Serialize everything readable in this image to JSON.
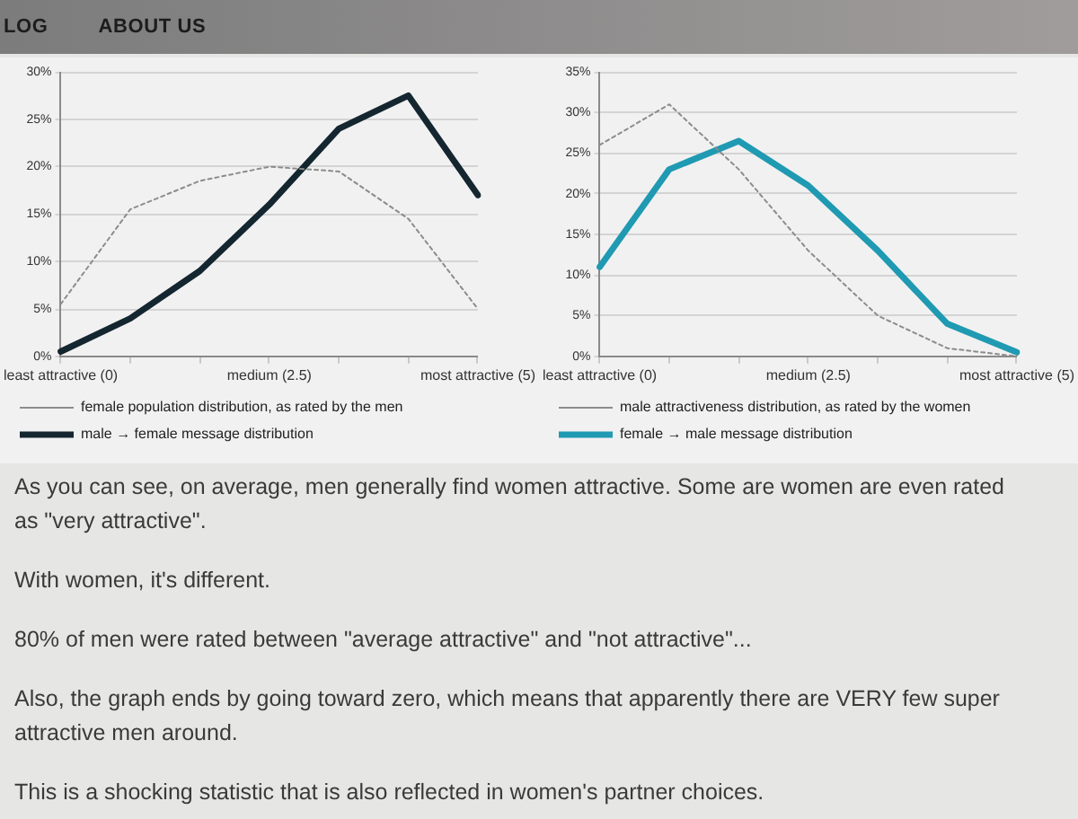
{
  "chart_data": [
    {
      "type": "line",
      "categories": [
        "least attractive (0)",
        null,
        null,
        "medium (2.5)",
        null,
        null,
        "most attractive (5)"
      ],
      "series": [
        {
          "name": "female population distribution, as rated by the men",
          "color": "#8c8c8c",
          "line_style": "dotted",
          "values": [
            5.5,
            15.5,
            18.5,
            20,
            19.5,
            14.5,
            5
          ]
        },
        {
          "name": "male → female message distribution",
          "color": "#14262f",
          "line_style": "solid",
          "values": [
            0.5,
            4,
            9,
            16,
            24,
            27.5,
            17
          ]
        }
      ],
      "ylim": [
        0,
        30
      ],
      "yticks": [
        {
          "value": 0,
          "label": "0%"
        },
        {
          "value": 5,
          "label": "5%"
        },
        {
          "value": 10,
          "label": "10%"
        },
        {
          "value": 15,
          "label": "15%"
        },
        {
          "value": 20,
          "label": "20%"
        },
        {
          "value": 25,
          "label": "25%"
        },
        {
          "value": 30,
          "label": "30%"
        }
      ],
      "grid": "y",
      "legend": "bottom",
      "marker": "none",
      "annotations": [
        "LOG",
        "ABOUT US"
      ]
    },
    {
      "type": "line",
      "categories": [
        "least attractive (0)",
        null,
        null,
        "medium (2.5)",
        null,
        null,
        "most attractive (5)"
      ],
      "series": [
        {
          "name": "male attractiveness distribution, as rated by the women",
          "color": "#8c8c8c",
          "line_style": "dotted",
          "values": [
            26,
            31,
            23,
            13,
            5,
            1,
            0
          ]
        },
        {
          "name": "female → male message distribution",
          "color": "#1f9ab2",
          "line_style": "solid",
          "values": [
            11,
            23,
            26.5,
            21,
            13,
            4,
            0.5
          ]
        }
      ],
      "ylim": [
        0,
        35
      ],
      "yticks": [
        {
          "value": 0,
          "label": "0%"
        },
        {
          "value": 5,
          "label": "5%"
        },
        {
          "value": 10,
          "label": "10%"
        },
        {
          "value": 15,
          "label": "15%"
        },
        {
          "value": 20,
          "label": "20%"
        },
        {
          "value": 25,
          "label": "25%"
        },
        {
          "value": 30,
          "label": "30%"
        },
        {
          "value": 35,
          "label": "35%"
        }
      ],
      "grid": "y",
      "legend": "bottom",
      "marker": "none",
      "annotations": [
        "As you can see, on average, men generally find women attractive. Some are women are even rated as \"very attractive\".",
        "With women, it's different.",
        "80% of men were rated between \"average attractive\" and \"not attractive\"...",
        "Also, the graph ends by going toward zero, which means that apparently there are VERY few super attractive men around.",
        "This is a shocking statistic that is also reflected in women's partner choices."
      ]
    }
  ]
}
